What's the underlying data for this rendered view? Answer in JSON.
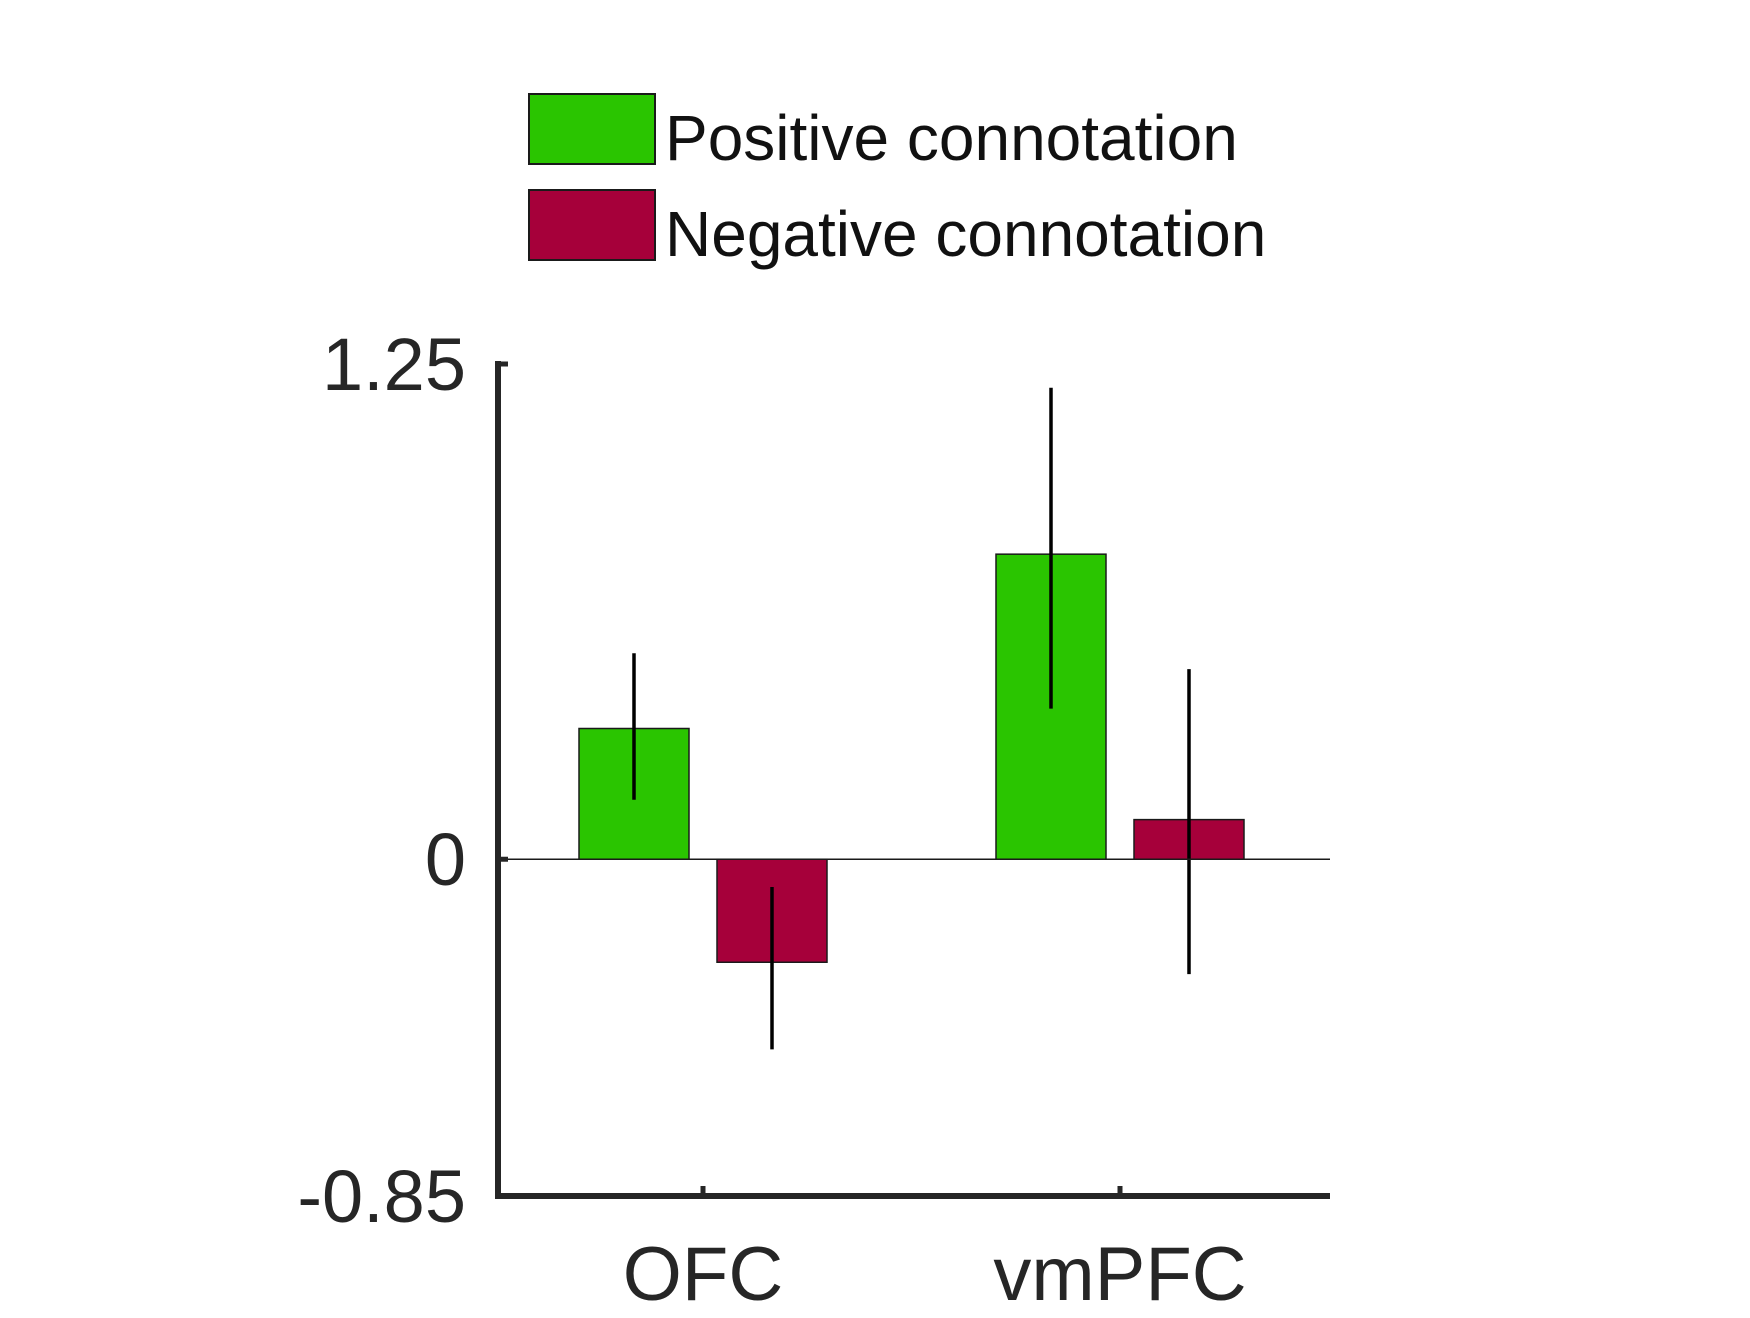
{
  "chart_data": {
    "type": "bar",
    "categories": [
      "OFC",
      "vmPFC"
    ],
    "series": [
      {
        "name": "Positive connotation",
        "color": "#2AC500",
        "values": [
          0.33,
          0.77
        ],
        "error_low": [
          0.15,
          0.38
        ],
        "error_high": [
          0.52,
          1.19
        ]
      },
      {
        "name": "Negative connotation",
        "color": "#A6003A",
        "values": [
          -0.26,
          0.1
        ],
        "error_low": [
          -0.48,
          -0.29
        ],
        "error_high": [
          -0.07,
          0.48
        ]
      }
    ],
    "ylim": [
      -0.85,
      1.25
    ],
    "yticks": [
      "1.25",
      "0",
      "-0.85"
    ],
    "legend_position": "top-center",
    "grid": false
  }
}
